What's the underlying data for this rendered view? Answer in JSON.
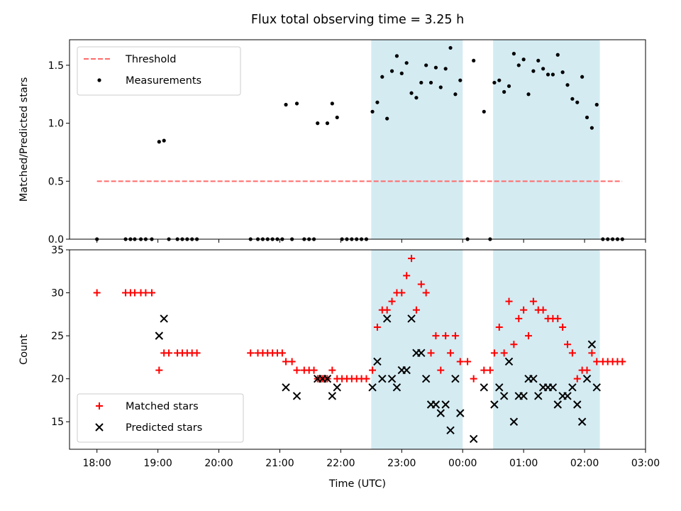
{
  "title": "Flux total observing time = 3.25 h",
  "xlabel": "Time (UTC)",
  "x_ticks": [
    "18:00",
    "19:00",
    "20:00",
    "21:00",
    "22:00",
    "23:00",
    "00:00",
    "01:00",
    "02:00",
    "03:00"
  ],
  "colors": {
    "band": "#add8e6",
    "threshold": "#ff6b6b",
    "matched": "#ff0000",
    "predicted": "#000000",
    "measurements": "#000000"
  },
  "chart_data": [
    {
      "type": "scatter",
      "ylabel": "Matched/Predicted stars",
      "y_ticks": [
        "0.0",
        "0.5",
        "1.0",
        "1.5"
      ],
      "ylim": [
        0,
        1.72
      ],
      "xlim_hours": [
        17.55,
        27.0
      ],
      "shaded_intervals": [
        [
          "22:30",
          "00:00"
        ],
        [
          "00:30",
          "02:15"
        ]
      ],
      "threshold": {
        "label": "Threshold",
        "value": 0.5,
        "x_range": [
          "18:00",
          "02:37"
        ]
      },
      "legend": {
        "location": "upper left",
        "entries": [
          "Threshold",
          "Measurements"
        ]
      },
      "series": [
        {
          "name": "Measurements",
          "points": [
            [
              18.0,
              0
            ],
            [
              18.47,
              0
            ],
            [
              18.55,
              0
            ],
            [
              18.62,
              0
            ],
            [
              18.72,
              0
            ],
            [
              18.8,
              0
            ],
            [
              18.9,
              0
            ],
            [
              19.02,
              0.84
            ],
            [
              19.1,
              0.85
            ],
            [
              19.18,
              0
            ],
            [
              19.32,
              0
            ],
            [
              19.4,
              0
            ],
            [
              19.48,
              0
            ],
            [
              19.56,
              0
            ],
            [
              19.64,
              0
            ],
            [
              20.52,
              0
            ],
            [
              20.64,
              0
            ],
            [
              20.72,
              0
            ],
            [
              20.8,
              0
            ],
            [
              20.88,
              0
            ],
            [
              20.96,
              0
            ],
            [
              21.04,
              0
            ],
            [
              21.1,
              1.16
            ],
            [
              21.2,
              0
            ],
            [
              21.28,
              1.17
            ],
            [
              21.4,
              0
            ],
            [
              21.48,
              0
            ],
            [
              21.56,
              0
            ],
            [
              21.62,
              1.0
            ],
            [
              21.78,
              1.0
            ],
            [
              21.86,
              1.17
            ],
            [
              21.94,
              1.05
            ],
            [
              22.02,
              0
            ],
            [
              22.1,
              0
            ],
            [
              22.18,
              0
            ],
            [
              22.26,
              0
            ],
            [
              22.34,
              0
            ],
            [
              22.42,
              0
            ],
            [
              22.52,
              1.1
            ],
            [
              22.6,
              1.18
            ],
            [
              22.68,
              1.4
            ],
            [
              22.76,
              1.04
            ],
            [
              22.84,
              1.45
            ],
            [
              22.92,
              1.58
            ],
            [
              23.0,
              1.43
            ],
            [
              23.08,
              1.52
            ],
            [
              23.16,
              1.26
            ],
            [
              23.24,
              1.22
            ],
            [
              23.32,
              1.35
            ],
            [
              23.4,
              1.5
            ],
            [
              23.48,
              1.35
            ],
            [
              23.56,
              1.48
            ],
            [
              23.64,
              1.31
            ],
            [
              23.72,
              1.47
            ],
            [
              23.8,
              1.65
            ],
            [
              23.88,
              1.25
            ],
            [
              23.96,
              1.37
            ],
            [
              24.08,
              0
            ],
            [
              24.18,
              1.54
            ],
            [
              24.35,
              1.1
            ],
            [
              24.45,
              0
            ],
            [
              24.52,
              1.35
            ],
            [
              24.6,
              1.37
            ],
            [
              24.68,
              1.27
            ],
            [
              24.76,
              1.32
            ],
            [
              24.84,
              1.6
            ],
            [
              24.92,
              1.5
            ],
            [
              25.0,
              1.55
            ],
            [
              25.08,
              1.25
            ],
            [
              25.16,
              1.45
            ],
            [
              25.24,
              1.54
            ],
            [
              25.32,
              1.47
            ],
            [
              25.4,
              1.42
            ],
            [
              25.48,
              1.42
            ],
            [
              25.56,
              1.59
            ],
            [
              25.64,
              1.44
            ],
            [
              25.72,
              1.33
            ],
            [
              25.8,
              1.21
            ],
            [
              25.88,
              1.18
            ],
            [
              25.96,
              1.4
            ],
            [
              26.04,
              1.05
            ],
            [
              26.12,
              0.96
            ],
            [
              26.2,
              1.16
            ],
            [
              26.3,
              0
            ],
            [
              26.38,
              0
            ],
            [
              26.46,
              0
            ],
            [
              26.54,
              0
            ],
            [
              26.62,
              0
            ]
          ]
        }
      ]
    },
    {
      "type": "scatter",
      "ylabel": "Count",
      "y_ticks": [
        "15",
        "20",
        "25",
        "30",
        "35"
      ],
      "ylim": [
        11.8,
        35
      ],
      "xlim_hours": [
        17.55,
        27.0
      ],
      "shaded_intervals": [
        [
          "22:30",
          "00:00"
        ],
        [
          "00:30",
          "02:15"
        ]
      ],
      "legend": {
        "location": "lower left",
        "entries": [
          "Matched stars",
          "Predicted stars"
        ]
      },
      "series": [
        {
          "name": "Matched stars",
          "marker": "plus",
          "points": [
            [
              18.0,
              30
            ],
            [
              18.47,
              30
            ],
            [
              18.55,
              30
            ],
            [
              18.62,
              30
            ],
            [
              18.72,
              30
            ],
            [
              18.8,
              30
            ],
            [
              18.9,
              30
            ],
            [
              19.02,
              21
            ],
            [
              19.1,
              23
            ],
            [
              19.18,
              23
            ],
            [
              19.32,
              23
            ],
            [
              19.4,
              23
            ],
            [
              19.48,
              23
            ],
            [
              19.56,
              23
            ],
            [
              19.64,
              23
            ],
            [
              20.52,
              23
            ],
            [
              20.64,
              23
            ],
            [
              20.72,
              23
            ],
            [
              20.8,
              23
            ],
            [
              20.88,
              23
            ],
            [
              20.96,
              23
            ],
            [
              21.04,
              23
            ],
            [
              21.1,
              22
            ],
            [
              21.2,
              22
            ],
            [
              21.28,
              21
            ],
            [
              21.4,
              21
            ],
            [
              21.48,
              21
            ],
            [
              21.56,
              21
            ],
            [
              21.62,
              20
            ],
            [
              21.7,
              20
            ],
            [
              21.78,
              20
            ],
            [
              21.86,
              21
            ],
            [
              21.94,
              20
            ],
            [
              22.02,
              20
            ],
            [
              22.1,
              20
            ],
            [
              22.18,
              20
            ],
            [
              22.26,
              20
            ],
            [
              22.34,
              20
            ],
            [
              22.42,
              20
            ],
            [
              22.52,
              21
            ],
            [
              22.6,
              26
            ],
            [
              22.68,
              28
            ],
            [
              22.76,
              28
            ],
            [
              22.84,
              29
            ],
            [
              22.92,
              30
            ],
            [
              23.0,
              30
            ],
            [
              23.08,
              32
            ],
            [
              23.16,
              34
            ],
            [
              23.24,
              28
            ],
            [
              23.32,
              31
            ],
            [
              23.4,
              30
            ],
            [
              23.48,
              23
            ],
            [
              23.56,
              25
            ],
            [
              23.64,
              21
            ],
            [
              23.72,
              25
            ],
            [
              23.8,
              23
            ],
            [
              23.88,
              25
            ],
            [
              23.96,
              22
            ],
            [
              24.08,
              22
            ],
            [
              24.18,
              20
            ],
            [
              24.35,
              21
            ],
            [
              24.45,
              21
            ],
            [
              24.52,
              23
            ],
            [
              24.6,
              26
            ],
            [
              24.68,
              23
            ],
            [
              24.76,
              29
            ],
            [
              24.84,
              24
            ],
            [
              24.92,
              27
            ],
            [
              25.0,
              28
            ],
            [
              25.08,
              25
            ],
            [
              25.16,
              29
            ],
            [
              25.24,
              28
            ],
            [
              25.32,
              28
            ],
            [
              25.4,
              27
            ],
            [
              25.48,
              27
            ],
            [
              25.56,
              27
            ],
            [
              25.64,
              26
            ],
            [
              25.72,
              24
            ],
            [
              25.8,
              23
            ],
            [
              25.88,
              20
            ],
            [
              25.96,
              21
            ],
            [
              26.04,
              21
            ],
            [
              26.12,
              23
            ],
            [
              26.2,
              22
            ],
            [
              26.3,
              22
            ],
            [
              26.38,
              22
            ],
            [
              26.46,
              22
            ],
            [
              26.54,
              22
            ],
            [
              26.62,
              22
            ]
          ]
        },
        {
          "name": "Predicted stars",
          "marker": "x",
          "points": [
            [
              19.02,
              25
            ],
            [
              19.1,
              27
            ],
            [
              21.1,
              19
            ],
            [
              21.28,
              18
            ],
            [
              21.62,
              20
            ],
            [
              21.7,
              20
            ],
            [
              21.78,
              20
            ],
            [
              21.86,
              18
            ],
            [
              21.94,
              19
            ],
            [
              22.52,
              19
            ],
            [
              22.6,
              22
            ],
            [
              22.68,
              20
            ],
            [
              22.76,
              27
            ],
            [
              22.84,
              20
            ],
            [
              22.92,
              19
            ],
            [
              23.0,
              21
            ],
            [
              23.08,
              21
            ],
            [
              23.16,
              27
            ],
            [
              23.24,
              23
            ],
            [
              23.32,
              23
            ],
            [
              23.4,
              20
            ],
            [
              23.48,
              17
            ],
            [
              23.56,
              17
            ],
            [
              23.64,
              16
            ],
            [
              23.72,
              17
            ],
            [
              23.8,
              14
            ],
            [
              23.88,
              20
            ],
            [
              23.96,
              16
            ],
            [
              24.18,
              13
            ],
            [
              24.35,
              19
            ],
            [
              24.52,
              17
            ],
            [
              24.6,
              19
            ],
            [
              24.68,
              18
            ],
            [
              24.76,
              22
            ],
            [
              24.84,
              15
            ],
            [
              24.92,
              18
            ],
            [
              25.0,
              18
            ],
            [
              25.08,
              20
            ],
            [
              25.16,
              20
            ],
            [
              25.24,
              18
            ],
            [
              25.32,
              19
            ],
            [
              25.4,
              19
            ],
            [
              25.48,
              19
            ],
            [
              25.56,
              17
            ],
            [
              25.64,
              18
            ],
            [
              25.72,
              18
            ],
            [
              25.8,
              19
            ],
            [
              25.88,
              17
            ],
            [
              25.96,
              15
            ],
            [
              26.04,
              20
            ],
            [
              26.12,
              24
            ],
            [
              26.2,
              19
            ]
          ]
        }
      ]
    }
  ]
}
